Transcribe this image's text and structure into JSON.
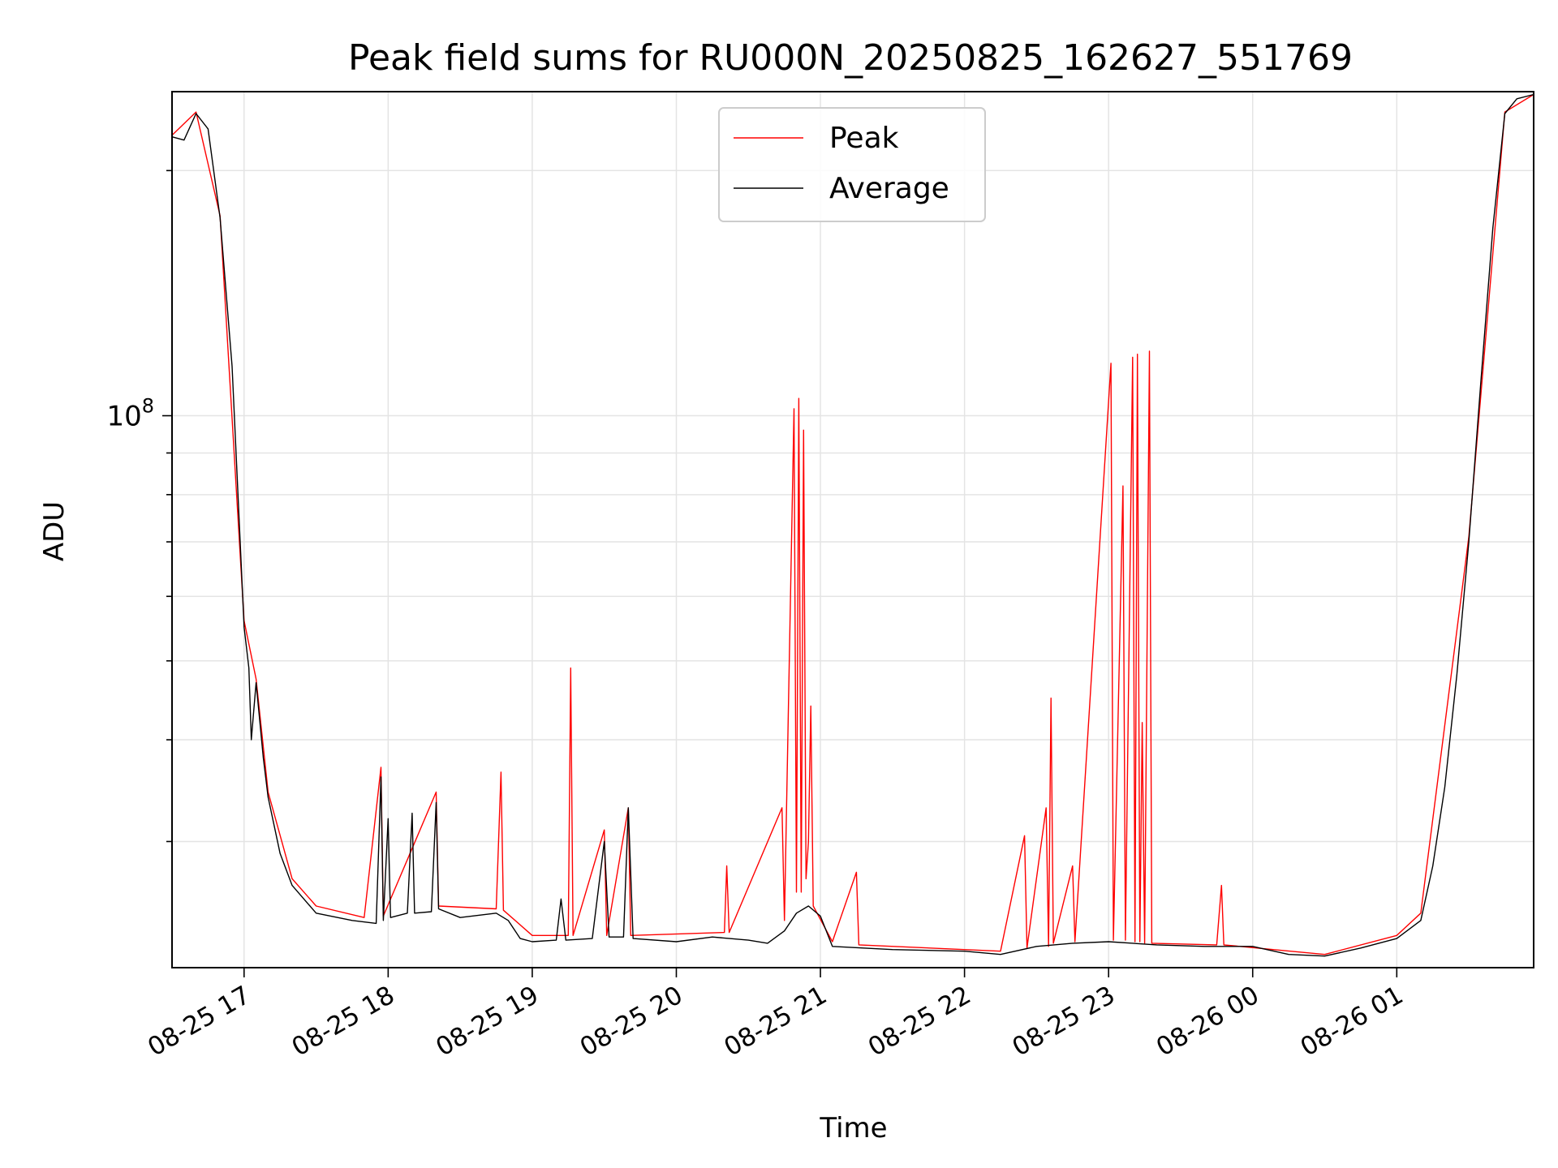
{
  "chart_data": {
    "type": "line",
    "title": "Peak field sums for RU000N_20250825_162627_551769",
    "xlabel": "Time",
    "ylabel": "ADU",
    "yscale": "log",
    "ylim": [
      21000000,
      250000000
    ],
    "xlim": [
      "2025-08-25 16:30",
      "2025-08-26 01:57"
    ],
    "grid": true,
    "legend": {
      "placement": "top-center",
      "entries": [
        "Peak",
        "Average"
      ]
    },
    "x_ticks": [
      {
        "time": "2025-08-25 17:00",
        "label": "08-25 17"
      },
      {
        "time": "2025-08-25 18:00",
        "label": "08-25 18"
      },
      {
        "time": "2025-08-25 19:00",
        "label": "08-25 19"
      },
      {
        "time": "2025-08-25 20:00",
        "label": "08-25 20"
      },
      {
        "time": "2025-08-25 21:00",
        "label": "08-25 21"
      },
      {
        "time": "2025-08-25 22:00",
        "label": "08-25 22"
      },
      {
        "time": "2025-08-25 23:00",
        "label": "08-25 23"
      },
      {
        "time": "2025-08-26 00:00",
        "label": "08-26 00"
      },
      {
        "time": "2025-08-26 01:00",
        "label": "08-26 01"
      }
    ],
    "y_major_ticks": [
      {
        "value": 100000000,
        "label": "10^8"
      }
    ],
    "y_minor_ticks": [
      30000000,
      40000000,
      50000000,
      60000000,
      70000000,
      80000000,
      90000000,
      200000000
    ],
    "series": [
      {
        "name": "Average",
        "color": "#000000",
        "points": [
          [
            "2025-08-25 16:30",
            220000000
          ],
          [
            "2025-08-25 16:35",
            218000000
          ],
          [
            "2025-08-25 16:40",
            235000000
          ],
          [
            "2025-08-25 16:45",
            225000000
          ],
          [
            "2025-08-25 16:50",
            175000000
          ],
          [
            "2025-08-25 16:55",
            115000000
          ],
          [
            "2025-08-25 17:00",
            55000000
          ],
          [
            "2025-08-25 17:02",
            49000000
          ],
          [
            "2025-08-25 17:03",
            40000000
          ],
          [
            "2025-08-25 17:05",
            47000000
          ],
          [
            "2025-08-25 17:08",
            38000000
          ],
          [
            "2025-08-25 17:10",
            34000000
          ],
          [
            "2025-08-25 17:15",
            29000000
          ],
          [
            "2025-08-25 17:20",
            26500000
          ],
          [
            "2025-08-25 17:30",
            24500000
          ],
          [
            "2025-08-25 17:45",
            24000000
          ],
          [
            "2025-08-25 17:55",
            23800000
          ],
          [
            "2025-08-25 17:57",
            36000000
          ],
          [
            "2025-08-25 17:58",
            24000000
          ],
          [
            "2025-08-25 18:00",
            32000000
          ],
          [
            "2025-08-25 18:01",
            24200000
          ],
          [
            "2025-08-25 18:08",
            24500000
          ],
          [
            "2025-08-25 18:10",
            32500000
          ],
          [
            "2025-08-25 18:11",
            24500000
          ],
          [
            "2025-08-25 18:18",
            24600000
          ],
          [
            "2025-08-25 18:20",
            33500000
          ],
          [
            "2025-08-25 18:21",
            24800000
          ],
          [
            "2025-08-25 18:30",
            24200000
          ],
          [
            "2025-08-25 18:45",
            24500000
          ],
          [
            "2025-08-25 18:50",
            24000000
          ],
          [
            "2025-08-25 18:55",
            22800000
          ],
          [
            "2025-08-25 19:00",
            22600000
          ],
          [
            "2025-08-25 19:10",
            22700000
          ],
          [
            "2025-08-25 19:12",
            25500000
          ],
          [
            "2025-08-25 19:14",
            22700000
          ],
          [
            "2025-08-25 19:25",
            22800000
          ],
          [
            "2025-08-25 19:30",
            30000000
          ],
          [
            "2025-08-25 19:32",
            22900000
          ],
          [
            "2025-08-25 19:38",
            22900000
          ],
          [
            "2025-08-25 19:40",
            33000000
          ],
          [
            "2025-08-25 19:42",
            22800000
          ],
          [
            "2025-08-25 20:00",
            22600000
          ],
          [
            "2025-08-25 20:15",
            22900000
          ],
          [
            "2025-08-25 20:30",
            22700000
          ],
          [
            "2025-08-25 20:38",
            22500000
          ],
          [
            "2025-08-25 20:45",
            23300000
          ],
          [
            "2025-08-25 20:50",
            24500000
          ],
          [
            "2025-08-25 20:55",
            25000000
          ],
          [
            "2025-08-25 21:00",
            24300000
          ],
          [
            "2025-08-25 21:05",
            22300000
          ],
          [
            "2025-08-25 21:30",
            22100000
          ],
          [
            "2025-08-25 22:00",
            22000000
          ],
          [
            "2025-08-25 22:15",
            21800000
          ],
          [
            "2025-08-25 22:30",
            22300000
          ],
          [
            "2025-08-25 22:45",
            22500000
          ],
          [
            "2025-08-25 23:00",
            22600000
          ],
          [
            "2025-08-25 23:20",
            22400000
          ],
          [
            "2025-08-25 23:40",
            22300000
          ],
          [
            "2025-08-26 00:00",
            22300000
          ],
          [
            "2025-08-26 00:15",
            21800000
          ],
          [
            "2025-08-26 00:30",
            21700000
          ],
          [
            "2025-08-26 00:45",
            22200000
          ],
          [
            "2025-08-26 01:00",
            22800000
          ],
          [
            "2025-08-26 01:10",
            24000000
          ],
          [
            "2025-08-26 01:15",
            28000000
          ],
          [
            "2025-08-26 01:20",
            35000000
          ],
          [
            "2025-08-26 01:25",
            48000000
          ],
          [
            "2025-08-26 01:30",
            70000000
          ],
          [
            "2025-08-26 01:35",
            110000000
          ],
          [
            "2025-08-26 01:40",
            170000000
          ],
          [
            "2025-08-26 01:45",
            235000000
          ],
          [
            "2025-08-26 01:50",
            245000000
          ],
          [
            "2025-08-26 01:57",
            248000000
          ]
        ]
      },
      {
        "name": "Peak",
        "color": "#ff0000",
        "points": [
          [
            "2025-08-25 16:30",
            221000000
          ],
          [
            "2025-08-25 16:40",
            236000000
          ],
          [
            "2025-08-25 16:50",
            176000000
          ],
          [
            "2025-08-25 17:00",
            56000000
          ],
          [
            "2025-08-25 17:05",
            47500000
          ],
          [
            "2025-08-25 17:10",
            34500000
          ],
          [
            "2025-08-25 17:20",
            27000000
          ],
          [
            "2025-08-25 17:30",
            25000000
          ],
          [
            "2025-08-25 17:50",
            24200000
          ],
          [
            "2025-08-25 17:57",
            37000000
          ],
          [
            "2025-08-25 17:58",
            24300000
          ],
          [
            "2025-08-25 18:20",
            34500000
          ],
          [
            "2025-08-25 18:21",
            25000000
          ],
          [
            "2025-08-25 18:45",
            24800000
          ],
          [
            "2025-08-25 18:47",
            36500000
          ],
          [
            "2025-08-25 18:48",
            24700000
          ],
          [
            "2025-08-25 19:00",
            23000000
          ],
          [
            "2025-08-25 19:15",
            23000000
          ],
          [
            "2025-08-25 19:16",
            49000000
          ],
          [
            "2025-08-25 19:17",
            23000000
          ],
          [
            "2025-08-25 19:30",
            31000000
          ],
          [
            "2025-08-25 19:31",
            23000000
          ],
          [
            "2025-08-25 19:40",
            33000000
          ],
          [
            "2025-08-25 19:41",
            23000000
          ],
          [
            "2025-08-25 20:20",
            23200000
          ],
          [
            "2025-08-25 20:21",
            28000000
          ],
          [
            "2025-08-25 20:22",
            23200000
          ],
          [
            "2025-08-25 20:44",
            33000000
          ],
          [
            "2025-08-25 20:45",
            24000000
          ],
          [
            "2025-08-25 20:49",
            102000000
          ],
          [
            "2025-08-25 20:50",
            26000000
          ],
          [
            "2025-08-25 20:51",
            105000000
          ],
          [
            "2025-08-25 20:52",
            26000000
          ],
          [
            "2025-08-25 20:53",
            96000000
          ],
          [
            "2025-08-25 20:54",
            27000000
          ],
          [
            "2025-08-25 20:55",
            30000000
          ],
          [
            "2025-08-25 20:56",
            44000000
          ],
          [
            "2025-08-25 20:57",
            25000000
          ],
          [
            "2025-08-25 21:05",
            22600000
          ],
          [
            "2025-08-25 21:15",
            27500000
          ],
          [
            "2025-08-25 21:16",
            22400000
          ],
          [
            "2025-08-25 22:15",
            22000000
          ],
          [
            "2025-08-25 22:25",
            30500000
          ],
          [
            "2025-08-25 22:26",
            22200000
          ],
          [
            "2025-08-25 22:34",
            33000000
          ],
          [
            "2025-08-25 22:35",
            22300000
          ],
          [
            "2025-08-25 22:36",
            45000000
          ],
          [
            "2025-08-25 22:37",
            22500000
          ],
          [
            "2025-08-25 22:45",
            28000000
          ],
          [
            "2025-08-25 22:46",
            22600000
          ],
          [
            "2025-08-25 23:01",
            116000000
          ],
          [
            "2025-08-25 23:02",
            22700000
          ],
          [
            "2025-08-25 23:06",
            82000000
          ],
          [
            "2025-08-25 23:07",
            22700000
          ],
          [
            "2025-08-25 23:10",
            118000000
          ],
          [
            "2025-08-25 23:11",
            22600000
          ],
          [
            "2025-08-25 23:12",
            119000000
          ],
          [
            "2025-08-25 23:13",
            22600000
          ],
          [
            "2025-08-25 23:14",
            42000000
          ],
          [
            "2025-08-25 23:15",
            22500000
          ],
          [
            "2025-08-25 23:17",
            120000000
          ],
          [
            "2025-08-25 23:18",
            22500000
          ],
          [
            "2025-08-25 23:45",
            22400000
          ],
          [
            "2025-08-25 23:47",
            26500000
          ],
          [
            "2025-08-25 23:48",
            22400000
          ],
          [
            "2025-08-26 00:30",
            21800000
          ],
          [
            "2025-08-26 01:00",
            23000000
          ],
          [
            "2025-08-26 01:10",
            24500000
          ],
          [
            "2025-08-26 01:30",
            71000000
          ],
          [
            "2025-08-26 01:45",
            236000000
          ],
          [
            "2025-08-26 01:57",
            248000000
          ]
        ]
      }
    ]
  }
}
